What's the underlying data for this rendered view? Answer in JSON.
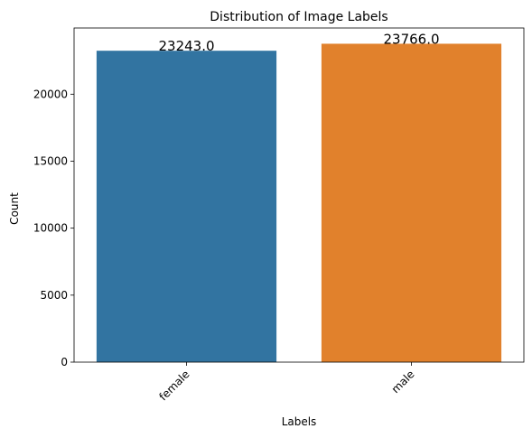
{
  "chart_data": {
    "type": "bar",
    "title": "Distribution of Image Labels",
    "xlabel": "Labels",
    "ylabel": "Count",
    "categories": [
      "female",
      "male"
    ],
    "values": [
      23243,
      23766
    ],
    "data_labels": [
      "23243.0",
      "23766.0"
    ],
    "colors": [
      "#3274a1",
      "#e1812c"
    ],
    "ylim": [
      0,
      24941
    ],
    "yticks": [
      0,
      5000,
      10000,
      15000,
      20000
    ],
    "ytick_labels": [
      "0",
      "5000",
      "10000",
      "15000",
      "20000"
    ],
    "xtick_rotation_deg": 45,
    "grid": false,
    "legend": "none"
  }
}
